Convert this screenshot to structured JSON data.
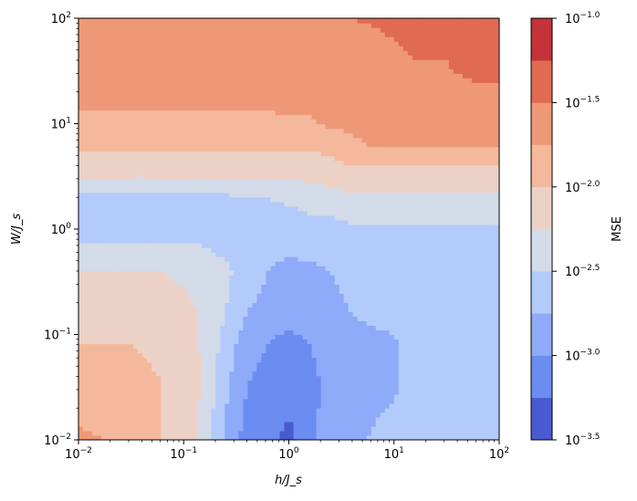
{
  "chart_data": {
    "type": "heatmap",
    "subtype": "filled-contour",
    "title": "",
    "xlabel": "h/J_s",
    "ylabel": "W/J_s",
    "xscale": "log",
    "yscale": "log",
    "xlim": [
      0.01,
      100
    ],
    "ylim": [
      0.01,
      100
    ],
    "x_ticks": [
      {
        "value": 0.01,
        "base": "10",
        "exp": "−2"
      },
      {
        "value": 0.1,
        "base": "10",
        "exp": "−1"
      },
      {
        "value": 1,
        "base": "10",
        "exp": "0"
      },
      {
        "value": 10,
        "base": "10",
        "exp": "1"
      },
      {
        "value": 100,
        "base": "10",
        "exp": "2"
      }
    ],
    "y_ticks": [
      {
        "value": 0.01,
        "base": "10",
        "exp": "−2"
      },
      {
        "value": 0.1,
        "base": "10",
        "exp": "−1"
      },
      {
        "value": 1,
        "base": "10",
        "exp": "0"
      },
      {
        "value": 10,
        "base": "10",
        "exp": "1"
      },
      {
        "value": 100,
        "base": "10",
        "exp": "2"
      }
    ],
    "colorbar": {
      "label": "MSE",
      "scale": "log",
      "range": [
        -3.5,
        -1.0
      ],
      "ticks": [
        {
          "value": -3.5,
          "base": "10",
          "exp": "−3.5"
        },
        {
          "value": -3.0,
          "base": "10",
          "exp": "−3.0"
        },
        {
          "value": -2.5,
          "base": "10",
          "exp": "−2.5"
        },
        {
          "value": -2.0,
          "base": "10",
          "exp": "−2.0"
        },
        {
          "value": -1.5,
          "base": "10",
          "exp": "−1.5"
        },
        {
          "value": -1.0,
          "base": "10",
          "exp": "−1.0"
        }
      ],
      "levels": [
        -3.5,
        -3.25,
        -3.0,
        -2.75,
        -2.5,
        -2.25,
        -2.0,
        -1.75,
        -1.5,
        -1.25,
        -1.0
      ],
      "colors": [
        "#4a5ad0",
        "#6b8cf0",
        "#8eaaf8",
        "#b3cbfa",
        "#d3dbe8",
        "#ecd2c6",
        "#f4b89c",
        "#ee9878",
        "#e06a52",
        "#c4323a"
      ]
    },
    "grid": false,
    "y_rows": [
      -2.0,
      -1.5,
      -1.1,
      -0.8,
      -0.4,
      0.0,
      0.3,
      0.6,
      0.8,
      1.0,
      1.3,
      1.6,
      2.0
    ],
    "x_cols": [
      -2.0,
      -1.5,
      -1.2,
      -0.95,
      -0.8,
      -0.6,
      -0.4,
      -0.2,
      0.0,
      0.2,
      0.4,
      0.6,
      0.9,
      1.2,
      1.5,
      1.8,
      2.0
    ],
    "log10_mse": [
      [
        -1.7,
        -1.8,
        -2.0,
        -2.1,
        -2.4,
        -2.8,
        -3.1,
        -3.2,
        -3.3,
        -3.1,
        -2.8,
        -2.8,
        -2.7,
        -2.7,
        -2.7,
        -2.7,
        -2.7
      ],
      [
        -1.9,
        -1.9,
        -2.0,
        -2.1,
        -2.3,
        -2.7,
        -3.0,
        -3.1,
        -3.2,
        -3.1,
        -2.9,
        -2.8,
        -2.8,
        -2.7,
        -2.7,
        -2.7,
        -2.7
      ],
      [
        -2.0,
        -2.0,
        -2.05,
        -2.15,
        -2.3,
        -2.6,
        -2.9,
        -3.0,
        -3.1,
        -3.0,
        -2.9,
        -2.8,
        -2.8,
        -2.7,
        -2.7,
        -2.7,
        -2.7
      ],
      [
        -2.1,
        -2.1,
        -2.15,
        -2.2,
        -2.3,
        -2.5,
        -2.75,
        -2.85,
        -2.9,
        -2.9,
        -2.8,
        -2.75,
        -2.7,
        -2.7,
        -2.7,
        -2.7,
        -2.7
      ],
      [
        -2.25,
        -2.25,
        -2.25,
        -2.3,
        -2.35,
        -2.45,
        -2.6,
        -2.75,
        -2.8,
        -2.8,
        -2.75,
        -2.7,
        -2.7,
        -2.65,
        -2.65,
        -2.65,
        -2.65
      ],
      [
        -2.6,
        -2.6,
        -2.6,
        -2.6,
        -2.6,
        -2.65,
        -2.7,
        -2.7,
        -2.65,
        -2.6,
        -2.6,
        -2.55,
        -2.55,
        -2.55,
        -2.55,
        -2.55,
        -2.55
      ],
      [
        -2.55,
        -2.55,
        -2.55,
        -2.55,
        -2.55,
        -2.55,
        -2.5,
        -2.5,
        -2.45,
        -2.4,
        -2.35,
        -2.3,
        -2.3,
        -2.3,
        -2.3,
        -2.3,
        -2.3
      ],
      [
        -2.1,
        -2.1,
        -2.1,
        -2.1,
        -2.1,
        -2.1,
        -2.1,
        -2.1,
        -2.1,
        -2.1,
        -2.05,
        -2.0,
        -2.0,
        -2.0,
        -2.0,
        -2.0,
        -2.0
      ],
      [
        -1.95,
        -1.95,
        -1.95,
        -1.95,
        -1.95,
        -1.95,
        -1.95,
        -1.95,
        -1.95,
        -1.95,
        -1.95,
        -1.8,
        -1.7,
        -1.7,
        -1.7,
        -1.7,
        -1.7
      ],
      [
        -1.85,
        -1.85,
        -1.85,
        -1.85,
        -1.85,
        -1.85,
        -1.85,
        -1.85,
        -1.8,
        -1.8,
        -1.7,
        -1.7,
        -1.65,
        -1.65,
        -1.65,
        -1.65,
        -1.65
      ],
      [
        -1.6,
        -1.6,
        -1.6,
        -1.6,
        -1.6,
        -1.6,
        -1.6,
        -1.6,
        -1.6,
        -1.6,
        -1.6,
        -1.6,
        -1.55,
        -1.55,
        -1.55,
        -1.55,
        -1.55
      ],
      [
        -1.7,
        -1.7,
        -1.7,
        -1.7,
        -1.7,
        -1.7,
        -1.7,
        -1.7,
        -1.7,
        -1.7,
        -1.7,
        -1.7,
        -1.6,
        -1.5,
        -1.5,
        -1.4,
        -1.4
      ],
      [
        -1.6,
        -1.6,
        -1.6,
        -1.6,
        -1.6,
        -1.6,
        -1.6,
        -1.6,
        -1.6,
        -1.6,
        -1.6,
        -1.5,
        -1.45,
        -1.4,
        -1.35,
        -1.3,
        -1.3
      ]
    ]
  }
}
